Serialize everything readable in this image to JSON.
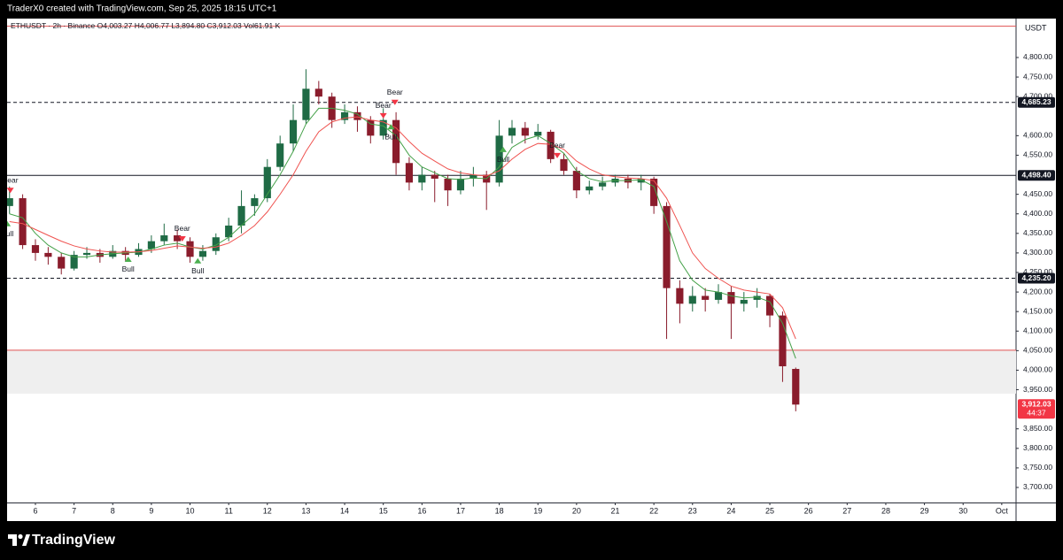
{
  "page": {
    "credit": "TraderX0 created with TradingView.com, Sep 25, 2025 18:15 UTC+1",
    "brand": "TradingView"
  },
  "chart_data": {
    "type": "candlestick",
    "header": {
      "symbol": "ETHUSDT · 2h · Binance",
      "open": "O4,003.27",
      "high": "H4,006.77",
      "low": "L3,894.80",
      "close": "C3,912.03",
      "volume": "Vol61.91 K"
    },
    "currency": "USDT",
    "up_color": "#1f6b45",
    "down_color": "#8a1c2c",
    "x": [
      5.33,
      5.67,
      6,
      6.33,
      6.67,
      7,
      7.33,
      7.67,
      8,
      8.33,
      8.67,
      9,
      9.33,
      9.67,
      10,
      10.33,
      10.67,
      11,
      11.33,
      11.67,
      12,
      12.33,
      12.67,
      13,
      13.33,
      13.67,
      14,
      14.33,
      14.67,
      15,
      15.33,
      15.67,
      16,
      16.33,
      16.67,
      17,
      17.33,
      17.67,
      18,
      18.33,
      18.67,
      19,
      19.33,
      19.67,
      20,
      20.33,
      20.67,
      21,
      21.33,
      21.67,
      22,
      22.33,
      22.67,
      23,
      23.33,
      23.67,
      24,
      24.33,
      24.67,
      25,
      25.33,
      25.67
    ],
    "open": [
      4420,
      4440,
      4320,
      4300,
      4290,
      4260,
      4295,
      4300,
      4290,
      4305,
      4295,
      4310,
      4330,
      4345,
      4330,
      4290,
      4305,
      4340,
      4370,
      4420,
      4440,
      4520,
      4580,
      4640,
      4720,
      4700,
      4640,
      4660,
      4640,
      4600,
      4640,
      4530,
      4480,
      4500,
      4490,
      4460,
      4490,
      4500,
      4480,
      4600,
      4620,
      4600,
      4610,
      4540,
      4510,
      4460,
      4470,
      4480,
      4490,
      4480,
      4490,
      4420,
      4210,
      4170,
      4190,
      4180,
      4200,
      4170,
      4180,
      4190,
      4140,
      4003.27
    ],
    "high": [
      4470,
      4450,
      4335,
      4315,
      4300,
      4305,
      4315,
      4310,
      4320,
      4315,
      4325,
      4345,
      4375,
      4360,
      4340,
      4320,
      4350,
      4390,
      4460,
      4450,
      4540,
      4600,
      4680,
      4770,
      4740,
      4710,
      4680,
      4675,
      4650,
      4670,
      4660,
      4545,
      4520,
      4510,
      4500,
      4510,
      4520,
      4510,
      4640,
      4640,
      4635,
      4630,
      4615,
      4555,
      4520,
      4485,
      4495,
      4500,
      4500,
      4500,
      4495,
      4430,
      4230,
      4215,
      4210,
      4220,
      4215,
      4200,
      4210,
      4195,
      4150,
      4006.77
    ],
    "low": [
      4400,
      4310,
      4280,
      4270,
      4245,
      4255,
      4285,
      4275,
      4285,
      4280,
      4290,
      4300,
      4320,
      4310,
      4275,
      4280,
      4295,
      4330,
      4350,
      4395,
      4430,
      4510,
      4560,
      4630,
      4680,
      4620,
      4630,
      4610,
      4580,
      4590,
      4500,
      4460,
      4460,
      4430,
      4420,
      4450,
      4470,
      4410,
      4470,
      4580,
      4580,
      4590,
      4530,
      4500,
      4440,
      4450,
      4460,
      4470,
      4465,
      4460,
      4400,
      4080,
      4120,
      4150,
      4150,
      4170,
      4080,
      4150,
      4160,
      4110,
      3970,
      3894.8
    ],
    "close": [
      4440,
      4320,
      4300,
      4290,
      4260,
      4295,
      4300,
      4290,
      4305,
      4295,
      4310,
      4330,
      4345,
      4330,
      4290,
      4305,
      4340,
      4370,
      4420,
      4440,
      4520,
      4580,
      4640,
      4720,
      4700,
      4640,
      4660,
      4640,
      4600,
      4640,
      4530,
      4480,
      4500,
      4490,
      4460,
      4490,
      4500,
      4480,
      4600,
      4620,
      4600,
      4610,
      4540,
      4510,
      4460,
      4470,
      4480,
      4490,
      4480,
      4490,
      4420,
      4210,
      4170,
      4190,
      4180,
      4200,
      4170,
      4180,
      4190,
      4140,
      4010,
      3912.03
    ],
    "lines": [
      {
        "color": "#43a047",
        "values": [
          4400,
          4390,
          4350,
          4320,
          4300,
          4290,
          4290,
          4295,
          4298,
          4300,
          4302,
          4310,
          4320,
          4325,
          4315,
          4310,
          4320,
          4340,
          4370,
          4400,
          4450,
          4500,
          4560,
          4630,
          4670,
          4670,
          4665,
          4655,
          4630,
          4625,
          4600,
          4550,
          4520,
          4505,
          4490,
          4488,
          4492,
          4490,
          4520,
          4570,
          4590,
          4600,
          4580,
          4555,
          4510,
          4490,
          4482,
          4485,
          4485,
          4487,
          4470,
          4380,
          4280,
          4230,
          4205,
          4200,
          4190,
          4185,
          4187,
          4175,
          4120,
          4030
        ]
      },
      {
        "color": "#ef5350",
        "values": [
          4380,
          4375,
          4360,
          4345,
          4330,
          4318,
          4310,
          4305,
          4302,
          4302,
          4303,
          4306,
          4312,
          4318,
          4315,
          4312,
          4315,
          4325,
          4345,
          4370,
          4405,
          4450,
          4500,
          4560,
          4610,
          4635,
          4645,
          4648,
          4640,
          4635,
          4620,
          4585,
          4555,
          4535,
          4515,
          4505,
          4500,
          4497,
          4510,
          4540,
          4565,
          4580,
          4578,
          4565,
          4535,
          4515,
          4500,
          4495,
          4492,
          4490,
          4485,
          4440,
          4370,
          4300,
          4260,
          4235,
          4215,
          4205,
          4200,
          4195,
          4160,
          4080
        ]
      }
    ],
    "levels": [
      {
        "value": 4685.23,
        "label": "4,685.23",
        "style": "dashed"
      },
      {
        "value": 4498.4,
        "label": "4,498.40",
        "style": "solid"
      },
      {
        "value": 4235.2,
        "label": "4,235.20",
        "style": "dashed"
      }
    ],
    "top_line": {
      "value": 4880,
      "color": "#e05050"
    },
    "zone": {
      "low": 3940,
      "high": 4051,
      "color": "#efefef",
      "edge_color": "#e05050"
    },
    "last_price": {
      "value": 3912.03,
      "label": "3,912.03",
      "countdown": "44:37",
      "color": "#f23645"
    },
    "signals": [
      {
        "kind": "bear",
        "text": "Bear",
        "x": 5.35,
        "y": 4460
      },
      {
        "kind": "bull",
        "text": "Bull",
        "x": 5.27,
        "y": 4375
      },
      {
        "kind": "bull",
        "text": "Bull",
        "x": 8.4,
        "y": 4284
      },
      {
        "kind": "bear",
        "text": "Bear",
        "x": 9.8,
        "y": 4336
      },
      {
        "kind": "bull",
        "text": "Bull",
        "x": 10.2,
        "y": 4280
      },
      {
        "kind": "bear",
        "text": "Bear",
        "x": 15.0,
        "y": 4651
      },
      {
        "kind": "bear",
        "text": "Bear",
        "x": 15.3,
        "y": 4685
      },
      {
        "kind": "bull",
        "text": "Bull",
        "x": 15.2,
        "y": 4623
      },
      {
        "kind": "bull",
        "text": "Bull",
        "x": 18.1,
        "y": 4565
      },
      {
        "kind": "bear",
        "text": "Bear",
        "x": 19.5,
        "y": 4549
      }
    ],
    "xlim": [
      5.267,
      31.37
    ],
    "ylim": [
      3661.5,
      4897.3
    ],
    "xticks": [
      6,
      7,
      8,
      9,
      10,
      11,
      12,
      13,
      14,
      15,
      16,
      17,
      18,
      19,
      20,
      21,
      22,
      23,
      24,
      25,
      26,
      27,
      28,
      29,
      30,
      {
        "value": 31,
        "label": "Oct"
      }
    ],
    "yticks": [
      {
        "value": 3700,
        "label": "3,700.00"
      },
      {
        "value": 3750,
        "label": "3,750.00"
      },
      {
        "value": 3800,
        "label": "3,800.00"
      },
      {
        "value": 3850,
        "label": "3,850.00"
      },
      {
        "value": 3950,
        "label": "3,950.00"
      },
      {
        "value": 4000,
        "label": "4,000.00"
      },
      {
        "value": 4050,
        "label": "4,050.00"
      },
      {
        "value": 4100,
        "label": "4,100.00"
      },
      {
        "value": 4150,
        "label": "4,150.00"
      },
      {
        "value": 4200,
        "label": "4,200.00"
      },
      {
        "value": 4250,
        "label": "4,250.00"
      },
      {
        "value": 4300,
        "label": "4,300.00"
      },
      {
        "value": 4350,
        "label": "4,350.00"
      },
      {
        "value": 4400,
        "label": "4,400.00"
      },
      {
        "value": 4450,
        "label": "4,450.00"
      },
      {
        "value": 4550,
        "label": "4,550.00"
      },
      {
        "value": 4600,
        "label": "4,600.00"
      },
      {
        "value": 4700,
        "label": "4,700.00"
      },
      {
        "value": 4750,
        "label": "4,750.00"
      },
      {
        "value": 4800,
        "label": "4,800.00"
      }
    ],
    "grid": false
  }
}
